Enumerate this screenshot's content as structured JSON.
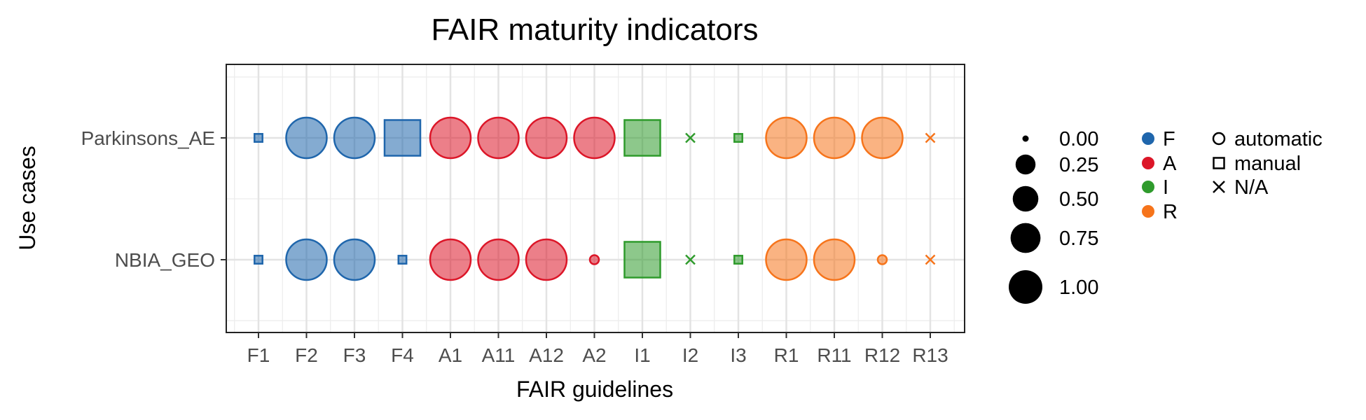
{
  "chart_data": {
    "type": "scatter",
    "title": "FAIR maturity indicators",
    "xlabel": "FAIR guidelines",
    "ylabel": "Use cases",
    "x": [
      "F1",
      "F2",
      "F3",
      "F4",
      "A1",
      "A11",
      "A12",
      "A2",
      "I1",
      "I2",
      "I3",
      "R1",
      "R11",
      "R12",
      "R13"
    ],
    "y": [
      "Parkinsons_AE",
      "NBIA_GEO"
    ],
    "grid": true,
    "legend_position": "right",
    "category_of_guideline": [
      "F",
      "F",
      "F",
      "F",
      "A",
      "A",
      "A",
      "A",
      "I",
      "I",
      "I",
      "R",
      "R",
      "R",
      "R"
    ],
    "series": [
      {
        "name": "Parkinsons_AE",
        "size": [
          0,
          1,
          1,
          1,
          1,
          1,
          1,
          1,
          1,
          0,
          0,
          1,
          1,
          1,
          0
        ],
        "method": [
          "manual",
          "automatic",
          "automatic",
          "manual",
          "automatic",
          "automatic",
          "automatic",
          "automatic",
          "manual",
          "N/A",
          "manual",
          "automatic",
          "automatic",
          "automatic",
          "N/A"
        ]
      },
      {
        "name": "NBIA_GEO",
        "size": [
          0,
          1,
          1,
          0,
          1,
          1,
          1,
          0,
          1,
          0,
          0,
          1,
          1,
          0,
          0
        ],
        "method": [
          "manual",
          "automatic",
          "automatic",
          "manual",
          "automatic",
          "automatic",
          "automatic",
          "automatic",
          "manual",
          "N/A",
          "manual",
          "automatic",
          "automatic",
          "automatic",
          "N/A"
        ]
      }
    ],
    "size_legend": [
      "0.00",
      "0.25",
      "0.50",
      "0.75",
      "1.00"
    ],
    "size_legend_values": [
      0,
      0.25,
      0.5,
      0.75,
      1
    ],
    "color_legend": [
      {
        "label": "F",
        "color": "#1F66AC"
      },
      {
        "label": "A",
        "color": "#DC1628"
      },
      {
        "label": "I",
        "color": "#2F9B2C"
      },
      {
        "label": "R",
        "color": "#F6741B"
      }
    ],
    "shape_legend": [
      "automatic",
      "manual",
      "N/A"
    ]
  }
}
